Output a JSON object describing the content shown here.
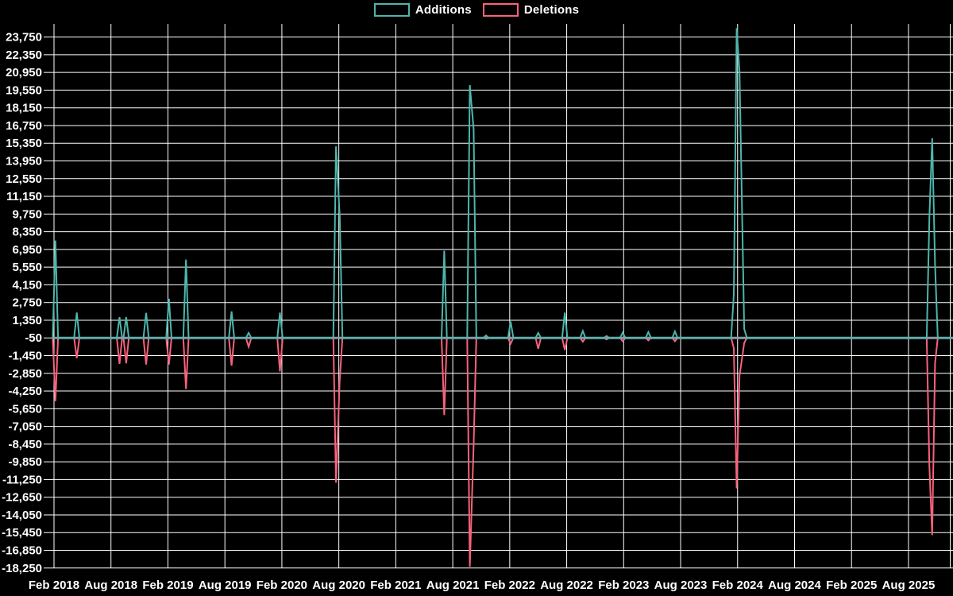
{
  "colors": {
    "background": "#000000",
    "grid": "#ffffff",
    "baseline": "#8a9aa6",
    "text": "#ffffff",
    "additions": "#4db6ac",
    "deletions": "#f8627c"
  },
  "chart_data": {
    "type": "line",
    "title": "",
    "legend_position": "top-center",
    "grid": true,
    "x_axis": {
      "labels": [
        "Feb 2018",
        "Aug 2018",
        "Feb 2019",
        "Aug 2019",
        "Feb 2020",
        "Aug 2020",
        "Feb 2021",
        "Aug 2021",
        "Feb 2022",
        "Aug 2022",
        "Feb 2023",
        "Aug 2023",
        "Feb 2024",
        "Aug 2024",
        "Feb 2025",
        "Aug 2025"
      ],
      "interval_months": 6
    },
    "y_axis": {
      "tick_labels": [
        "23,750",
        "22,350",
        "20,950",
        "19,550",
        "18,150",
        "16,750",
        "15,350",
        "13,950",
        "12,550",
        "11,150",
        "9,750",
        "8,350",
        "6,950",
        "5,550",
        "4,150",
        "2,750",
        "1,350",
        "-50",
        "-1,450",
        "-2,850",
        "-4,250",
        "-5,650",
        "-7,050",
        "-8,450",
        "-9,850",
        "-11,250",
        "-12,650",
        "-14,050",
        "-15,450",
        "-16,850",
        "-18,250"
      ],
      "tick_values": [
        23750,
        22350,
        20950,
        19550,
        18150,
        16750,
        15350,
        13950,
        12550,
        11150,
        9750,
        8350,
        6950,
        5550,
        4150,
        2750,
        1350,
        -50,
        -1450,
        -2850,
        -4250,
        -5650,
        -7050,
        -8450,
        -9850,
        -11250,
        -12650,
        -14050,
        -15450,
        -16850,
        -18250
      ],
      "step": 1400
    },
    "series": [
      {
        "name": "Additions",
        "color": "#4db6ac"
      },
      {
        "name": "Deletions",
        "color": "#f8627c"
      }
    ],
    "spikes": [
      {
        "date": "Feb 2018",
        "m": 0.15,
        "additions": 7700,
        "deletions": -5000
      },
      {
        "date": "Apr 2018",
        "m": 2.4,
        "additions": 2000,
        "deletions": -1600
      },
      {
        "date": "Sep 2018",
        "m": 6.9,
        "additions": 1650,
        "deletions": -2050
      },
      {
        "date": "Sep 2018",
        "m": 7.6,
        "additions": 1650,
        "deletions": -2000
      },
      {
        "date": "Nov 2018",
        "m": 9.7,
        "additions": 1980,
        "deletions": -2100
      },
      {
        "date": "Feb 2019",
        "m": 12.1,
        "additions": 3100,
        "deletions": -2100
      },
      {
        "date": "Apr 2019",
        "m": 13.9,
        "additions": 6200,
        "deletions": -4050
      },
      {
        "date": "Aug 2019",
        "m": 18.7,
        "additions": 2100,
        "deletions": -2200
      },
      {
        "date": "Oct 2019",
        "m": 20.5,
        "additions": 400,
        "deletions": -700
      },
      {
        "date": "Jan 2020",
        "m": 23.8,
        "additions": 2000,
        "deletions": -2650
      },
      {
        "date": "Jul 2020",
        "m": 29.7,
        "additions": 15150,
        "deletions": -11450
      },
      {
        "date": "Aug 2020",
        "m": 30.1,
        "additions": 9600,
        "deletions": -3300
      },
      {
        "date": "Jul 2021",
        "m": 41.1,
        "additions": 6900,
        "deletions": -6100
      },
      {
        "date": "Sep 2021",
        "m": 43.8,
        "additions": 20000,
        "deletions": -18100
      },
      {
        "date": "Oct 2021",
        "m": 44.2,
        "additions": 16500,
        "deletions": -8450
      },
      {
        "date": "Nov 2021",
        "m": 45.5,
        "additions": 200,
        "deletions": -80
      },
      {
        "date": "Feb 2022",
        "m": 48.1,
        "additions": 1300,
        "deletions": -450
      },
      {
        "date": "May 2022",
        "m": 51.0,
        "additions": 400,
        "deletions": -850
      },
      {
        "date": "Aug 2022",
        "m": 53.8,
        "additions": 2000,
        "deletions": -950
      },
      {
        "date": "Oct 2022",
        "m": 55.7,
        "additions": 550,
        "deletions": -300
      },
      {
        "date": "Dec 2022",
        "m": 58.2,
        "additions": 150,
        "deletions": -120
      },
      {
        "date": "Feb 2023",
        "m": 59.9,
        "additions": 420,
        "deletions": -260
      },
      {
        "date": "Apr 2023",
        "m": 62.6,
        "additions": 460,
        "deletions": -200
      },
      {
        "date": "Jul 2023",
        "m": 65.4,
        "additions": 520,
        "deletions": -260
      },
      {
        "date": "Jan 2024",
        "m": 71.6,
        "additions": 3400,
        "deletions": -800
      },
      {
        "date": "Feb 2024",
        "m": 71.9,
        "additions": 24500,
        "deletions": -11900
      },
      {
        "date": "Feb 2024",
        "m": 72.2,
        "additions": 21000,
        "deletions": -3000
      },
      {
        "date": "Mar 2024",
        "m": 72.7,
        "additions": 700,
        "deletions": -400
      },
      {
        "date": "Oct 2025",
        "m": 92.2,
        "additions": 9600,
        "deletions": -10200
      },
      {
        "date": "Oct 2025",
        "m": 92.5,
        "additions": 15800,
        "deletions": -15600
      },
      {
        "date": "Nov 2025",
        "m": 92.8,
        "additions": 5800,
        "deletions": -2000
      }
    ]
  }
}
